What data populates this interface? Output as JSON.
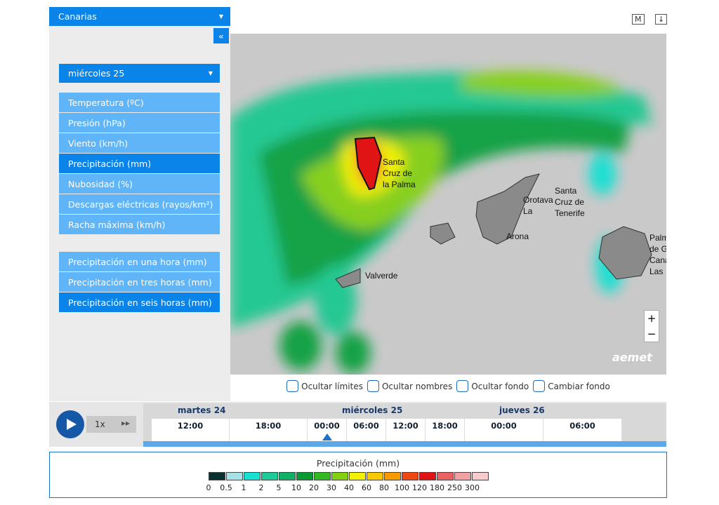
{
  "region": "Canarias",
  "collapse": "«",
  "day": "miércoles 25",
  "menu": [
    "Temperatura (ºC)",
    "Presión (hPa)",
    "Viento (km/h)",
    "Precipitación (mm)",
    "Nubosidad (%)",
    "Descargas eléctricas (rayos/km²)",
    "Racha máxima (km/h)"
  ],
  "submenu": [
    "Precipitación en una hora (mm)",
    "Precipitación en tres horas (mm)",
    "Precipitación en seis horas (mm)"
  ],
  "toolbar": [
    "M",
    "↓"
  ],
  "map": {
    "places": [
      [
        "Santa",
        "Cruz de",
        "la Palma"
      ],
      [
        "Santa",
        "Cruz de",
        "Tenerife"
      ],
      [
        "Orotava",
        "La"
      ],
      [
        "Arona"
      ],
      [
        "Valverde"
      ],
      [
        "Palm",
        "de G",
        "Cana",
        "Las"
      ]
    ],
    "zoom": [
      "+",
      "−"
    ],
    "logo": "aemet"
  },
  "options": [
    "Ocultar límites",
    "Ocultar nombres",
    "Ocultar fondo",
    "Cambiar fondo"
  ],
  "player": {
    "speed": "1x",
    "forward": "▸▸"
  },
  "timeline": {
    "days": [
      "martes 24",
      "miércoles 25",
      "jueves 26"
    ],
    "hours": [
      "12:00",
      "18:00",
      "00:00",
      "06:00",
      "12:00",
      "18:00",
      "00:00",
      "06:00"
    ]
  },
  "legend": {
    "title": "Precipitación (mm)",
    "labels": [
      "0",
      "0.5",
      "1",
      "2",
      "5",
      "10",
      "20",
      "30",
      "40",
      "60",
      "80",
      "100",
      "120",
      "180",
      "250",
      "300"
    ],
    "colors": [
      "#0b3030",
      "#a8e2e8",
      "#18e0d2",
      "#1ccb96",
      "#12b066",
      "#0b9a32",
      "#32b820",
      "#84d012",
      "#f2f200",
      "#f8c800",
      "#f89a00",
      "#f04812",
      "#e01414",
      "#e86262",
      "#f0a2a2",
      "#f8cccc"
    ]
  }
}
